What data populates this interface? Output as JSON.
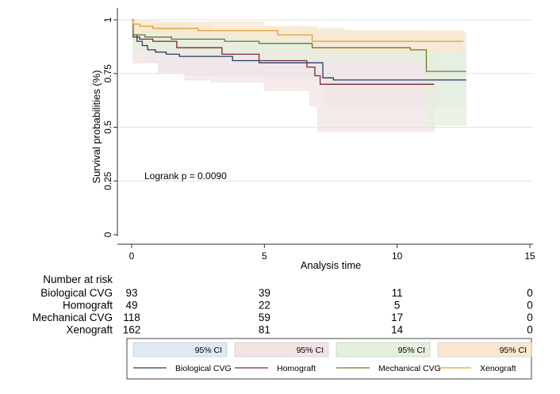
{
  "chart_data": {
    "type": "line",
    "title": "",
    "xlabel": "Analysis time",
    "ylabel": "Survival probabilities (%)",
    "xlim": [
      0,
      15
    ],
    "ylim": [
      0,
      1
    ],
    "xticks": [
      "0",
      "5",
      "10",
      "15"
    ],
    "yticks": [
      "0",
      "0.25",
      "0.5",
      "0.75",
      "1"
    ],
    "grid": "horizontal",
    "annotation": "Logrank p = 0.0090",
    "series": [
      {
        "name": "Biological CVG",
        "color": "#1f3f66",
        "ci_color": "#dfe9f4",
        "steps": [
          [
            0,
            1
          ],
          [
            0.05,
            0.93
          ],
          [
            0.2,
            0.9
          ],
          [
            0.4,
            0.88
          ],
          [
            0.6,
            0.86
          ],
          [
            0.9,
            0.85
          ],
          [
            1.3,
            0.84
          ],
          [
            1.8,
            0.83
          ],
          [
            3.8,
            0.81
          ],
          [
            4.8,
            0.8
          ],
          [
            7.2,
            0.73
          ],
          [
            7.6,
            0.72
          ],
          [
            12.6,
            0.72
          ]
        ],
        "ci_upper": [
          [
            0,
            1
          ],
          [
            0.05,
            0.98
          ],
          [
            1,
            0.93
          ],
          [
            2,
            0.92
          ],
          [
            5,
            0.9
          ],
          [
            7.3,
            0.86
          ],
          [
            12.6,
            0.82
          ]
        ],
        "ci_lower": [
          [
            0,
            1
          ],
          [
            0.05,
            0.86
          ],
          [
            0.5,
            0.8
          ],
          [
            1,
            0.76
          ],
          [
            2,
            0.74
          ],
          [
            5,
            0.72
          ],
          [
            7.3,
            0.6
          ],
          [
            12.6,
            0.58
          ]
        ]
      },
      {
        "name": "Homograft",
        "color": "#7a2a33",
        "ci_color": "#f4e3e3",
        "steps": [
          [
            0,
            1
          ],
          [
            0.05,
            0.92
          ],
          [
            0.3,
            0.91
          ],
          [
            0.8,
            0.9
          ],
          [
            1.7,
            0.87
          ],
          [
            3.4,
            0.84
          ],
          [
            4.8,
            0.81
          ],
          [
            6.6,
            0.78
          ],
          [
            6.9,
            0.74
          ],
          [
            7.1,
            0.7
          ],
          [
            11.4,
            0.7
          ]
        ],
        "ci_upper": [
          [
            0,
            1
          ],
          [
            0.05,
            0.98
          ],
          [
            2,
            0.96
          ],
          [
            5,
            0.93
          ],
          [
            7,
            0.9
          ],
          [
            11.4,
            0.9
          ]
        ],
        "ci_lower": [
          [
            0,
            1
          ],
          [
            0.05,
            0.8
          ],
          [
            1,
            0.75
          ],
          [
            2,
            0.72
          ],
          [
            3,
            0.71
          ],
          [
            5,
            0.67
          ],
          [
            6.7,
            0.6
          ],
          [
            7,
            0.48
          ],
          [
            11.4,
            0.48
          ]
        ]
      },
      {
        "name": "Mechanical CVG",
        "color": "#5f7d2a",
        "ci_color": "#e5efdc",
        "steps": [
          [
            0,
            1
          ],
          [
            0.05,
            0.93
          ],
          [
            0.5,
            0.92
          ],
          [
            1.5,
            0.91
          ],
          [
            3.5,
            0.9
          ],
          [
            4.8,
            0.89
          ],
          [
            6.8,
            0.87
          ],
          [
            10.5,
            0.86
          ],
          [
            11.1,
            0.86
          ],
          [
            11.1,
            0.76
          ],
          [
            12.6,
            0.76
          ]
        ],
        "ci_upper": [
          [
            0,
            1
          ],
          [
            0.05,
            0.98
          ],
          [
            3,
            0.96
          ],
          [
            8,
            0.95
          ],
          [
            11.2,
            0.94
          ],
          [
            12.6,
            0.94
          ]
        ],
        "ci_lower": [
          [
            0,
            1
          ],
          [
            0.05,
            0.85
          ],
          [
            2,
            0.84
          ],
          [
            5,
            0.82
          ],
          [
            7,
            0.81
          ],
          [
            11.1,
            0.51
          ],
          [
            12.6,
            0.51
          ]
        ]
      },
      {
        "name": "Xenograft",
        "color": "#e0a03a",
        "ci_color": "#fbe7cf",
        "steps": [
          [
            0,
            1
          ],
          [
            0.05,
            0.98
          ],
          [
            0.3,
            0.97
          ],
          [
            0.8,
            0.96
          ],
          [
            2.5,
            0.95
          ],
          [
            5.5,
            0.93
          ],
          [
            6.8,
            0.9
          ],
          [
            12.5,
            0.9
          ]
        ],
        "ci_upper": [
          [
            0,
            1
          ],
          [
            0.05,
            1
          ],
          [
            1,
            0.99
          ],
          [
            5,
            0.97
          ],
          [
            7,
            0.95
          ],
          [
            12.5,
            0.95
          ]
        ],
        "ci_lower": [
          [
            0,
            1
          ],
          [
            0.05,
            0.95
          ],
          [
            1,
            0.93
          ],
          [
            4,
            0.91
          ],
          [
            6.8,
            0.85
          ],
          [
            12.5,
            0.83
          ]
        ]
      }
    ],
    "risk_table": {
      "header": "Number at risk",
      "rows": [
        {
          "label": "Biological CVG",
          "values": [
            "93",
            "39",
            "11",
            "0"
          ]
        },
        {
          "label": "Homograft",
          "values": [
            "49",
            "22",
            "5",
            "0"
          ]
        },
        {
          "label": "Mechanical CVG",
          "values": [
            "118",
            "59",
            "17",
            "0"
          ]
        },
        {
          "label": "Xenograft",
          "values": [
            "162",
            "81",
            "14",
            "0"
          ]
        }
      ]
    },
    "legend": {
      "position": "bottom",
      "ci_label": "95% CI",
      "line_labels": [
        "Biological CVG",
        "Homograft",
        "Mechanical CVG",
        "Xenograft"
      ]
    }
  }
}
